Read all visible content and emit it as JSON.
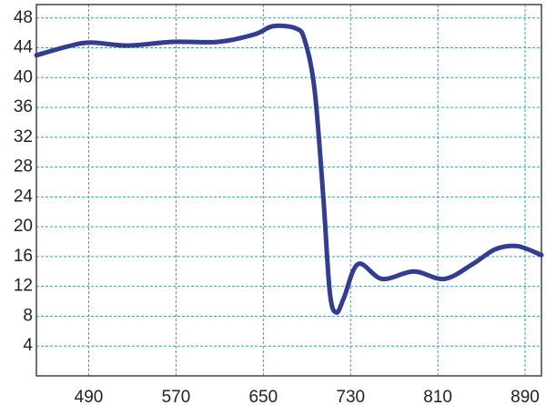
{
  "chart_data": {
    "type": "line",
    "x": [
      442,
      471,
      492,
      526,
      567,
      609,
      642,
      659,
      680,
      688,
      697,
      705,
      711,
      717,
      724,
      737,
      759,
      788,
      816,
      842,
      863,
      883,
      905
    ],
    "series": [
      {
        "color": "#333d8f",
        "values": [
          43,
          44.2,
          44.7,
          44.3,
          44.8,
          44.8,
          45.8,
          46.9,
          46.6,
          45,
          38.4,
          24,
          11.2,
          8.5,
          10.5,
          15,
          13,
          14,
          13,
          15,
          17,
          17.4,
          16.2
        ]
      }
    ],
    "xlim": [
      442,
      905
    ],
    "xticks": [
      490,
      570,
      650,
      730,
      810,
      890
    ],
    "ylim": [
      0,
      49.8
    ],
    "yticks": [
      4,
      8,
      12,
      16,
      20,
      24,
      28,
      32,
      36,
      40,
      44,
      48
    ],
    "grid": true
  }
}
